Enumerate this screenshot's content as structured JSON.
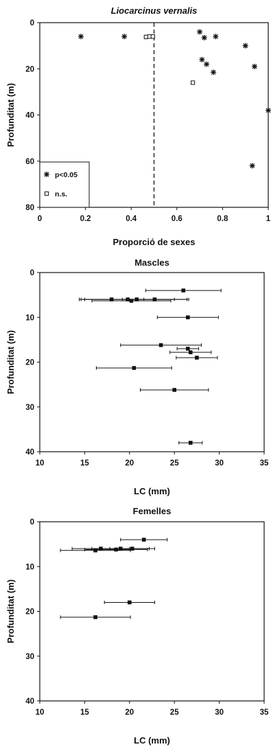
{
  "chart_data": [
    {
      "type": "scatter",
      "title": "Liocarcinus vernalis",
      "xlabel": "Proporció de sexes",
      "ylabel": "Profunditat (m)",
      "xlim": [
        0,
        1
      ],
      "ylim": [
        80,
        0
      ],
      "x_ticks": [
        "0",
        "0.2",
        "0.4",
        "0.6",
        "0.8",
        "1"
      ],
      "y_ticks": [
        "0",
        "20",
        "40",
        "60",
        "80"
      ],
      "reference_line_x": 0.5,
      "legend": {
        "placement": "bottom-left",
        "entries": [
          "p<0.05",
          "n.s."
        ]
      },
      "series": [
        {
          "name": "p<0.05",
          "marker": "asterisk",
          "points": [
            [
              0.18,
              6
            ],
            [
              0.37,
              6
            ],
            [
              0.7,
              4
            ],
            [
              0.72,
              6.5
            ],
            [
              0.77,
              6
            ],
            [
              0.71,
              16
            ],
            [
              0.73,
              18
            ],
            [
              0.76,
              21.5
            ],
            [
              0.9,
              10
            ],
            [
              0.94,
              19
            ],
            [
              1.0,
              38
            ],
            [
              0.93,
              62
            ]
          ]
        },
        {
          "name": "n.s.",
          "marker": "open-square",
          "points": [
            [
              0.465,
              6.2
            ],
            [
              0.48,
              6
            ],
            [
              0.495,
              6
            ],
            [
              0.67,
              26
            ]
          ]
        }
      ]
    },
    {
      "type": "scatter",
      "title": "Mascles",
      "xlabel": "LC (mm)",
      "ylabel": "Profunditat (m)",
      "xlim": [
        10,
        35
      ],
      "ylim": [
        40,
        0
      ],
      "x_ticks": [
        "10",
        "15",
        "20",
        "25",
        "30",
        "35"
      ],
      "y_ticks": [
        "0",
        "10",
        "20",
        "30",
        "40"
      ],
      "points": [
        {
          "x": 26,
          "y": 4,
          "xerr": 4.2
        },
        {
          "x": 18,
          "y": 6,
          "xerr": 3.6
        },
        {
          "x": 19.8,
          "y": 6,
          "xerr": 5.2
        },
        {
          "x": 20.2,
          "y": 6.3,
          "xerr": 4.4
        },
        {
          "x": 20.8,
          "y": 6,
          "xerr": 5.8
        },
        {
          "x": 22.8,
          "y": 6,
          "xerr": 3.6
        },
        {
          "x": 26.5,
          "y": 10,
          "xerr": 3.4
        },
        {
          "x": 23.5,
          "y": 16.2,
          "xerr": 4.5
        },
        {
          "x": 26.5,
          "y": 17,
          "xerr": 1.2
        },
        {
          "x": 26.8,
          "y": 17.8,
          "xerr": 2.3
        },
        {
          "x": 27.5,
          "y": 19,
          "xerr": 2.3
        },
        {
          "x": 20.5,
          "y": 21.3,
          "xerr": 4.2
        },
        {
          "x": 25,
          "y": 26.2,
          "xerr": 3.8
        },
        {
          "x": 26.8,
          "y": 38,
          "xerr": 1.3
        }
      ]
    },
    {
      "type": "scatter",
      "title": "Femelles",
      "xlabel": "LC (mm)",
      "ylabel": "Profunditat (m)",
      "xlim": [
        10,
        35
      ],
      "ylim": [
        40,
        0
      ],
      "x_ticks": [
        "10",
        "15",
        "20",
        "25",
        "30",
        "35"
      ],
      "y_ticks": [
        "0",
        "10",
        "20",
        "30",
        "40"
      ],
      "points": [
        {
          "x": 21.6,
          "y": 4,
          "xerr": 2.6
        },
        {
          "x": 16.2,
          "y": 6.4,
          "xerr": 3.9
        },
        {
          "x": 16.8,
          "y": 6,
          "xerr": 3.2
        },
        {
          "x": 18.5,
          "y": 6.2,
          "xerr": 3.5
        },
        {
          "x": 19.0,
          "y": 6,
          "xerr": 3.2
        },
        {
          "x": 20.3,
          "y": 6,
          "xerr": 2.5
        },
        {
          "x": 20.0,
          "y": 18,
          "xerr": 2.8
        },
        {
          "x": 16.2,
          "y": 21.3,
          "xerr": 3.9
        }
      ]
    }
  ]
}
